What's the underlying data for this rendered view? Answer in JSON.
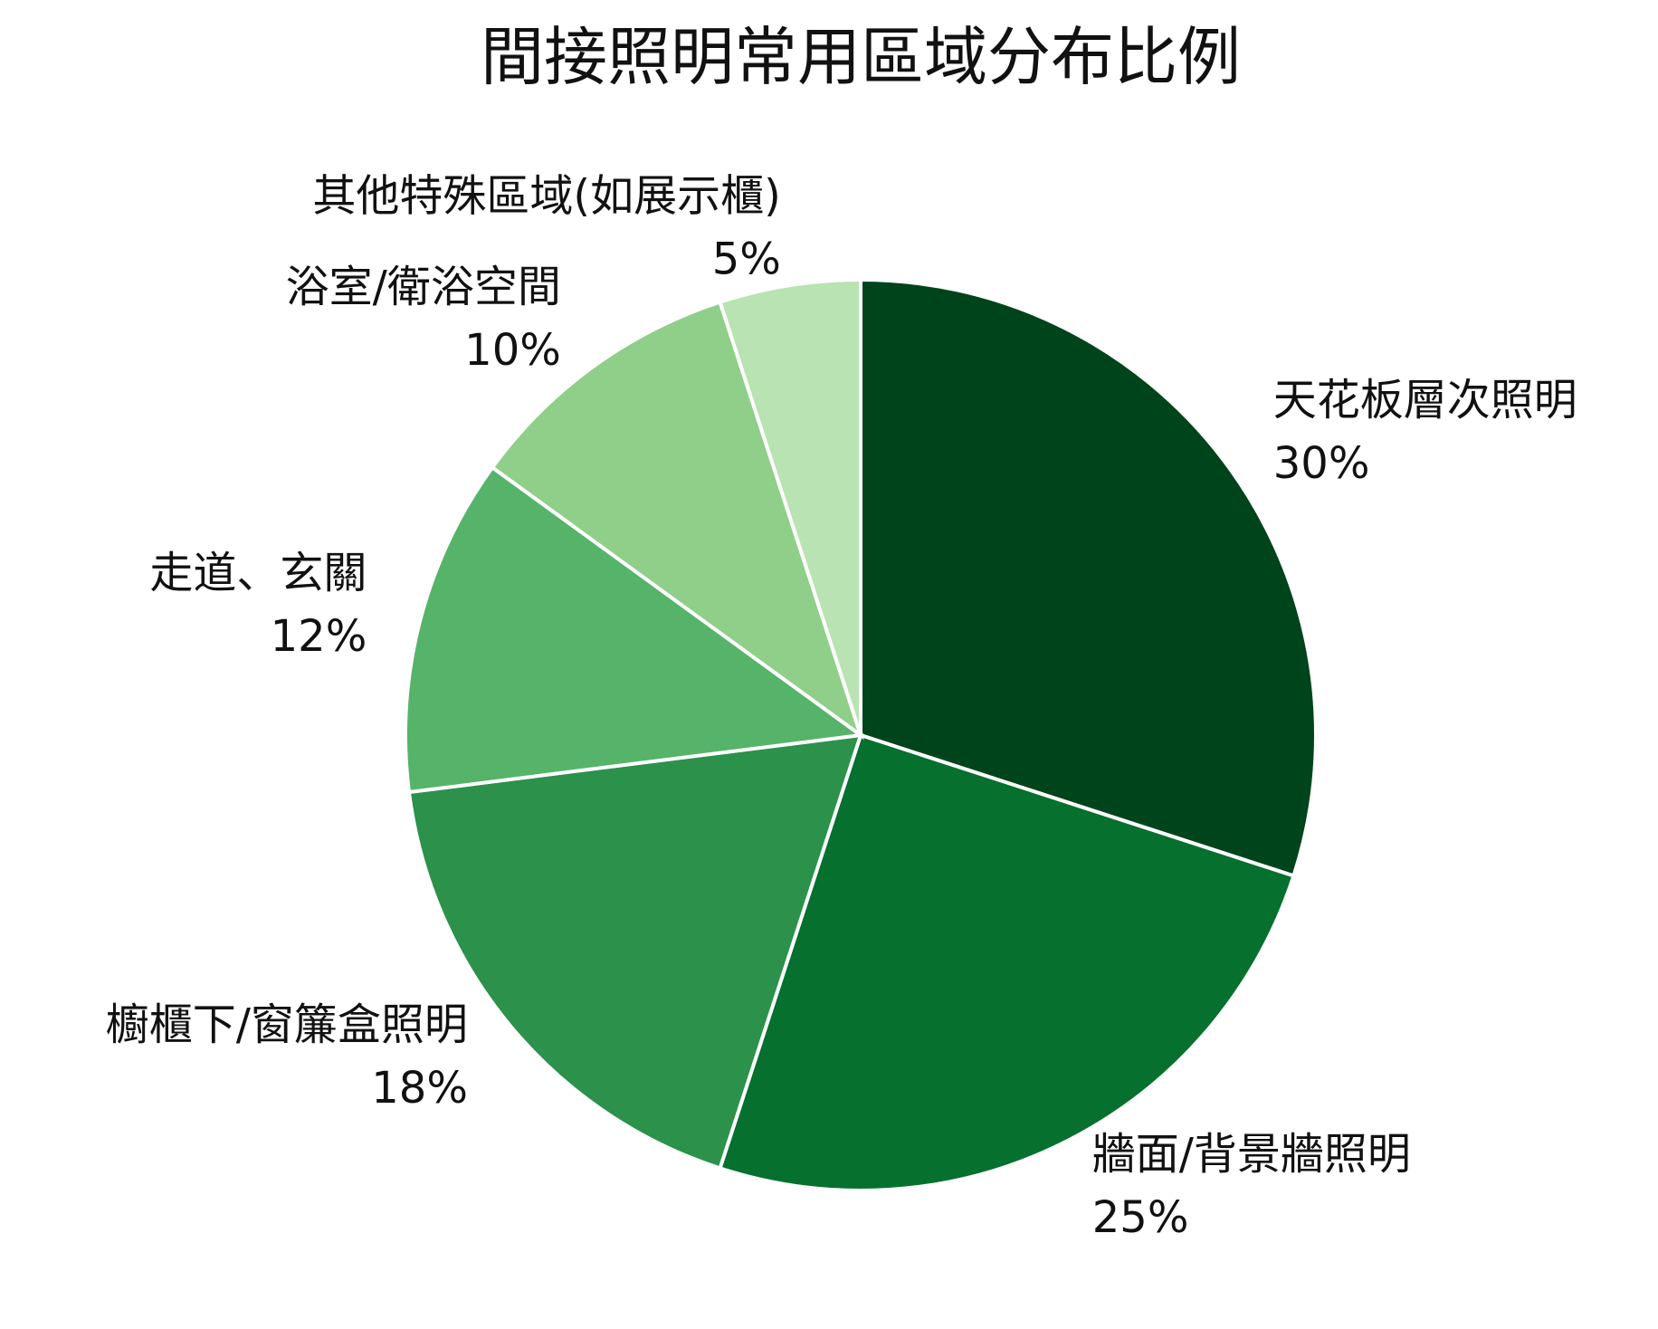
{
  "chart_data": {
    "type": "pie",
    "title": "間接照明常用區域分布比例",
    "categories": [
      "天花板層次照明",
      "牆面/背景牆照明",
      "櫥櫃下/窗簾盒照明",
      "走道、玄關",
      "浴室/衛浴空間",
      "其他特殊區域(如展示櫃)"
    ],
    "values": [
      30,
      25,
      18,
      12,
      10,
      5
    ],
    "value_labels": [
      "30%",
      "25%",
      "18%",
      "12%",
      "10%",
      "5%"
    ],
    "colors": [
      "#00441b",
      "#06702f",
      "#2b914b",
      "#56b46a",
      "#8fcf89",
      "#b9e3b2"
    ]
  }
}
